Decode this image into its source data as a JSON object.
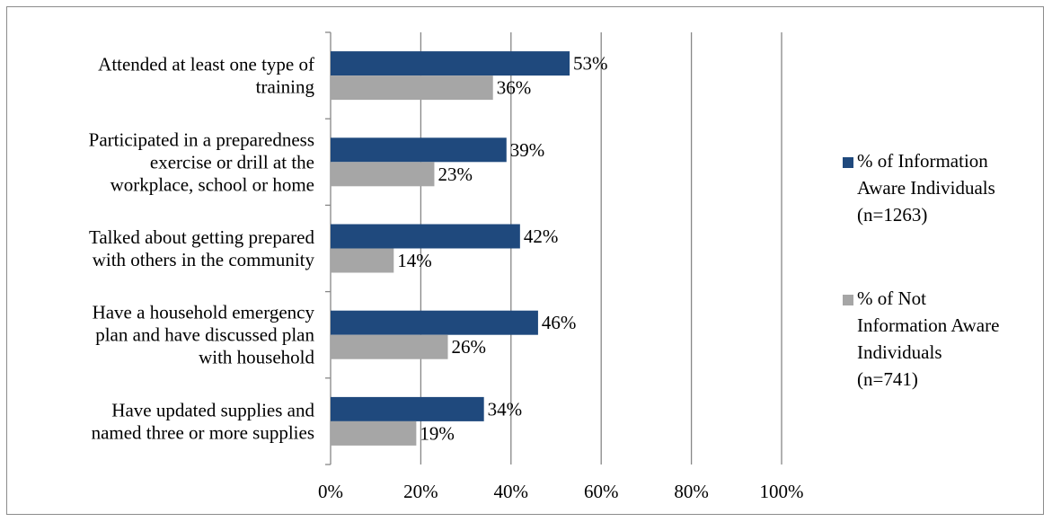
{
  "chart_data": {
    "type": "bar",
    "orientation": "horizontal",
    "title": "",
    "xlabel": "",
    "ylabel": "",
    "xlim": [
      0,
      100
    ],
    "x_ticks": [
      "0%",
      "20%",
      "40%",
      "60%",
      "80%",
      "100%"
    ],
    "x_tick_values": [
      0,
      20,
      40,
      60,
      80,
      100
    ],
    "grid": "vertical",
    "legend_position": "right",
    "categories": [
      [
        "Attended at least one type of",
        "training"
      ],
      [
        "Participated in a preparedness",
        "exercise or drill at the",
        "workplace, school or home"
      ],
      [
        "Talked about getting prepared",
        "with others in the community"
      ],
      [
        "Have a household emergency",
        "plan and have discussed plan",
        "with household"
      ],
      [
        "Have updated supplies and",
        "named three or more supplies"
      ]
    ],
    "series": [
      {
        "name": [
          "% of Information",
          "Aware Individuals",
          "(n=1263)"
        ],
        "color": "#1f497d",
        "values": [
          53,
          39,
          42,
          46,
          34
        ],
        "labels": [
          "53%",
          "39%",
          "42%",
          "46%",
          "34%"
        ]
      },
      {
        "name": [
          "% of Not",
          "Information Aware",
          "Individuals",
          "(n=741)"
        ],
        "color": "#a6a6a6",
        "values": [
          36,
          23,
          14,
          26,
          19
        ],
        "labels": [
          "36%",
          "23%",
          "14%",
          "26%",
          "19%"
        ]
      }
    ]
  }
}
